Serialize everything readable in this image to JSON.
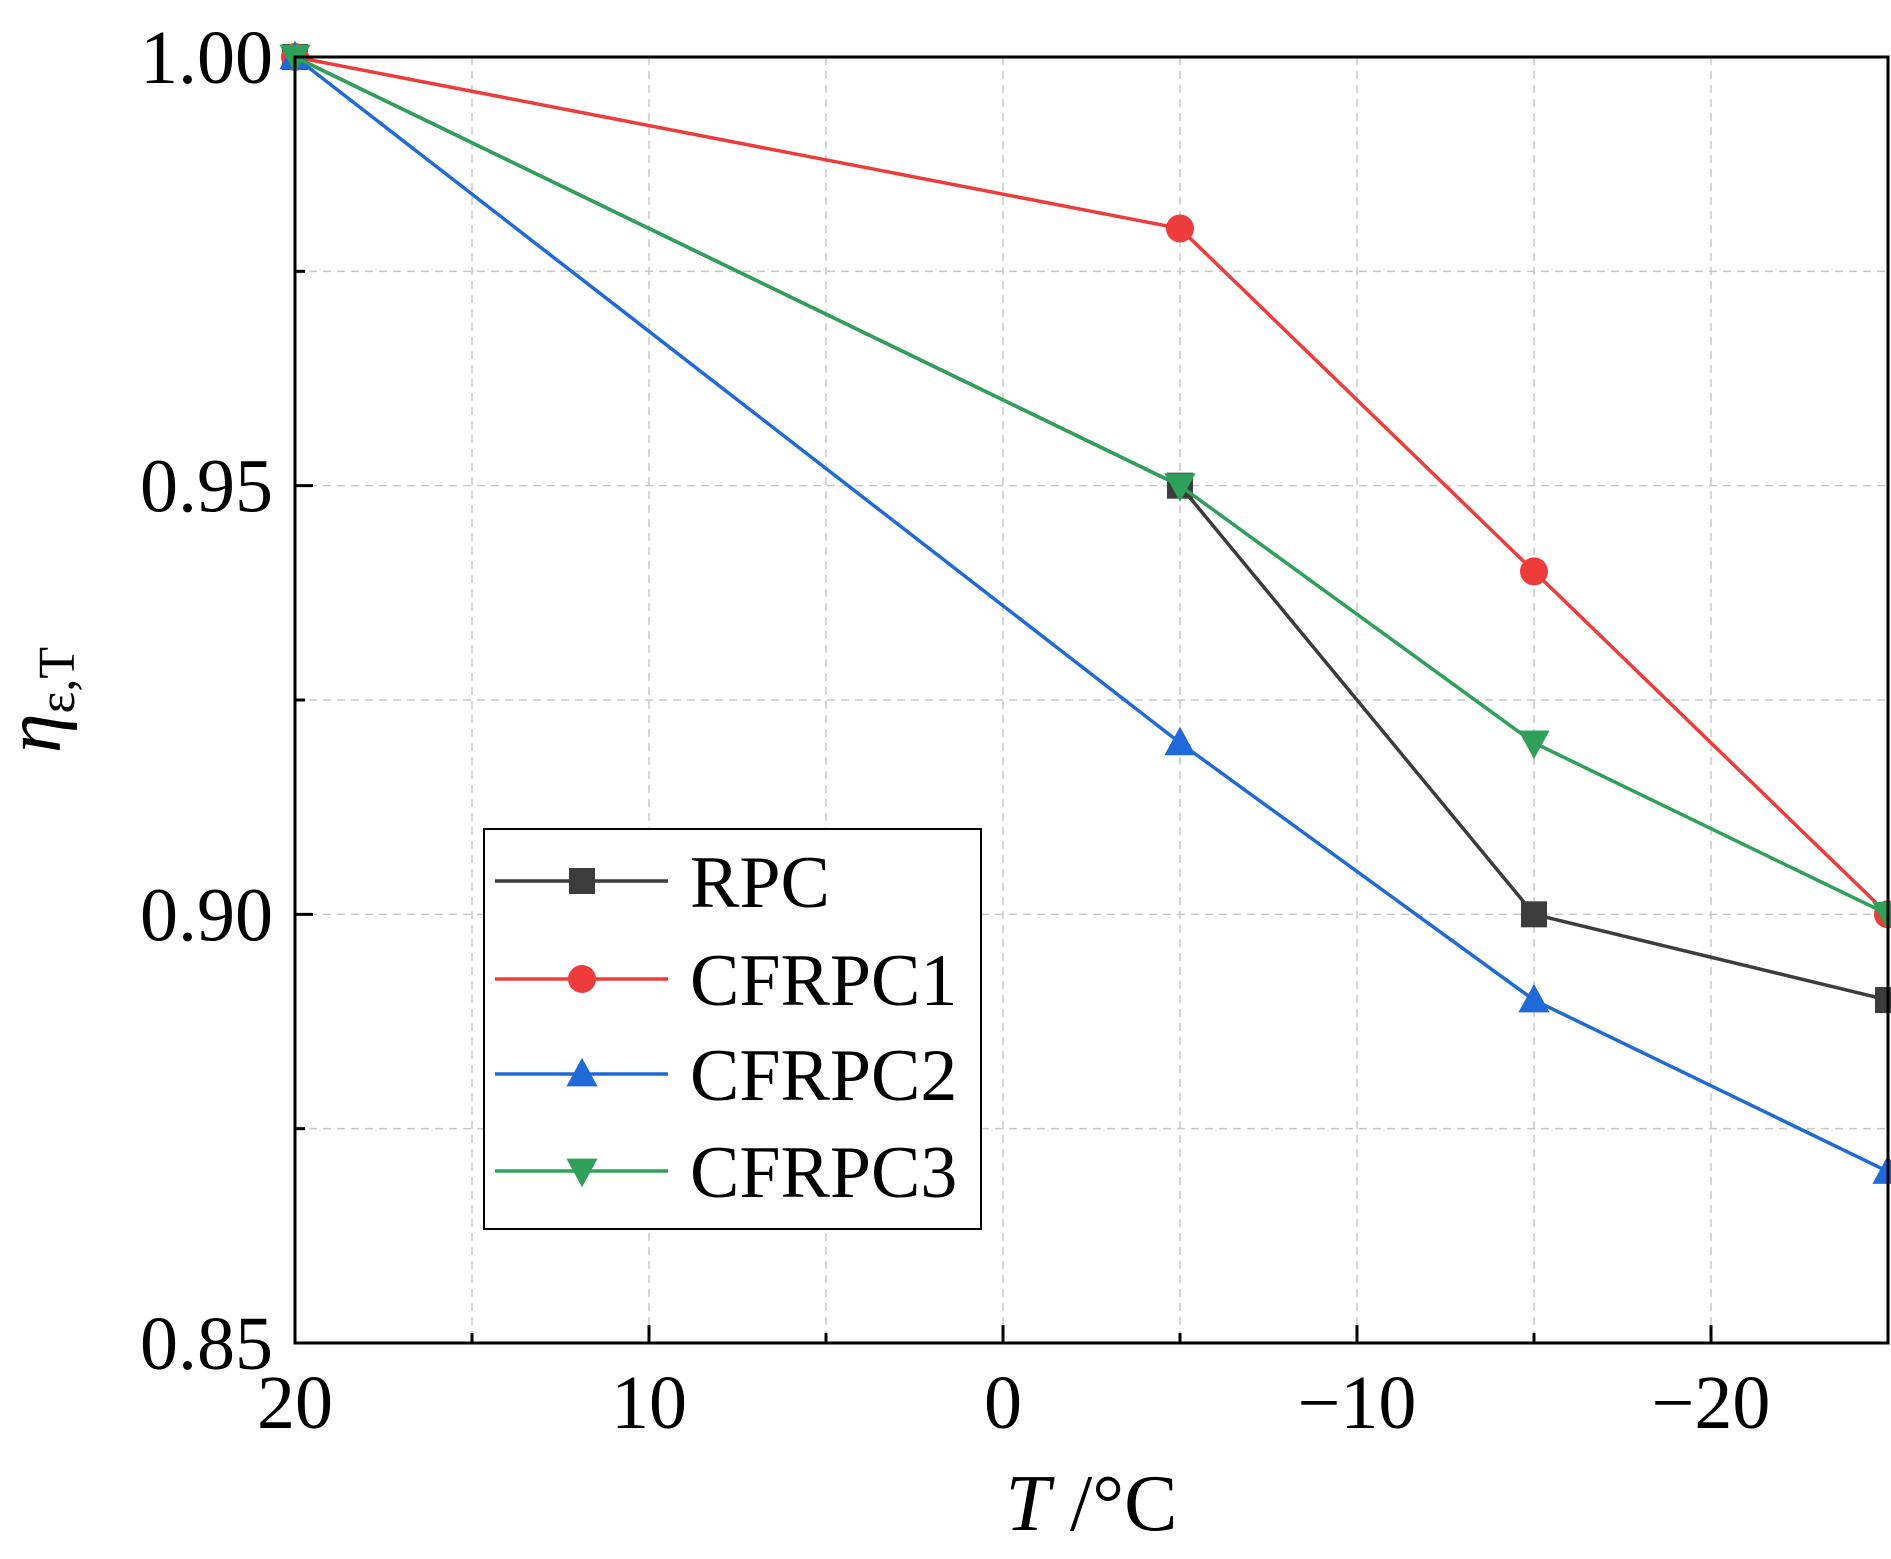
{
  "chart_data": {
    "type": "line",
    "title": "",
    "xlabel": "T /°C",
    "xlabel_italic_part": "T",
    "xlabel_rest": " /°C",
    "ylabel": "ηε,T",
    "ylabel_symbol": "η",
    "ylabel_subscript": "ε,T",
    "x": [
      20,
      -5,
      -15,
      -25
    ],
    "xlim": [
      20,
      -25
    ],
    "ylim": [
      0.85,
      1.0
    ],
    "x_ticks": [
      20,
      10,
      0,
      -10,
      -20
    ],
    "x_tick_labels": [
      "20",
      "10",
      "0",
      "−10",
      "−20"
    ],
    "y_ticks": [
      0.85,
      0.9,
      0.95,
      1.0
    ],
    "y_tick_labels": [
      "0.85",
      "0.90",
      "0.95",
      "1.00"
    ],
    "grid": true,
    "legend_position": "lower-left",
    "series": [
      {
        "name": "RPC",
        "values": [
          1.0,
          0.95,
          0.9,
          0.89
        ],
        "color": "#3c3c3c",
        "marker": "square"
      },
      {
        "name": "CFRPC1",
        "values": [
          1.0,
          0.98,
          0.94,
          0.9
        ],
        "color": "#ee3b3b",
        "marker": "circle"
      },
      {
        "name": "CFRPC2",
        "values": [
          1.0,
          0.92,
          0.89,
          0.87
        ],
        "color": "#1f6ad8",
        "marker": "triangle-up"
      },
      {
        "name": "CFRPC3",
        "values": [
          1.0,
          0.95,
          0.92,
          0.9
        ],
        "color": "#2ea05a",
        "marker": "triangle-down"
      }
    ]
  }
}
